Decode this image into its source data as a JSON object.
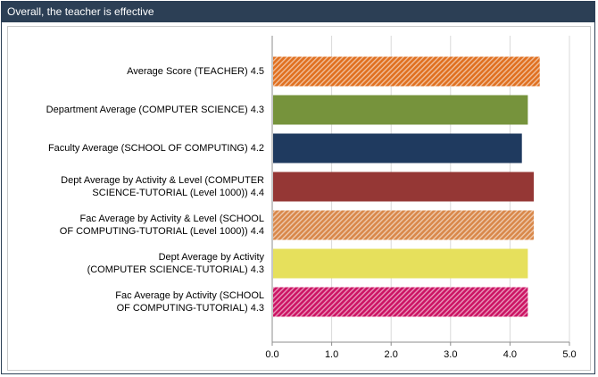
{
  "header": {
    "title": "Overall, the teacher is effective"
  },
  "chart_data": {
    "type": "bar",
    "orientation": "horizontal",
    "title": "Overall, the teacher is effective",
    "xlabel": "",
    "ylabel": "",
    "xlim": [
      0,
      5
    ],
    "xticks": [
      0,
      1,
      2,
      3,
      4,
      5
    ],
    "xtick_labels": [
      "0.0",
      "1.0",
      "2.0",
      "3.0",
      "4.0",
      "5.0"
    ],
    "grid": true,
    "categories": [
      "Average Score (TEACHER) 4.5",
      "Department Average (COMPUTER SCIENCE) 4.3",
      "Faculty Average (SCHOOL OF COMPUTING) 4.2",
      "Dept Average by Activity & Level (COMPUTER SCIENCE-TUTORIAL (Level 1000)) 4.4",
      "Fac Average by Activity & Level (SCHOOL OF COMPUTING-TUTORIAL (Level 1000)) 4.4",
      "Dept Average by Activity (COMPUTER SCIENCE-TUTORIAL) 4.3",
      "Fac Average by Activity (SCHOOL OF COMPUTING-TUTORIAL) 4.3"
    ],
    "label_lines": [
      [
        "Average Score (TEACHER) 4.5"
      ],
      [
        "Department Average (COMPUTER SCIENCE) 4.3"
      ],
      [
        "Faculty Average (SCHOOL OF COMPUTING) 4.2"
      ],
      [
        "Dept Average by Activity & Level (COMPUTER",
        "SCIENCE-TUTORIAL (Level 1000)) 4.4"
      ],
      [
        "Fac Average by Activity & Level (SCHOOL",
        "OF COMPUTING-TUTORIAL (Level 1000)) 4.4"
      ],
      [
        "Dept Average by Activity",
        "(COMPUTER SCIENCE-TUTORIAL) 4.3"
      ],
      [
        "Fac Average by Activity (SCHOOL",
        "OF COMPUTING-TUTORIAL) 4.3"
      ]
    ],
    "values": [
      4.5,
      4.3,
      4.2,
      4.4,
      4.4,
      4.3,
      4.3
    ],
    "bar_colors": [
      "#e07020",
      "#76933c",
      "#1f3a5f",
      "#953735",
      "#d9884a",
      "#e6e05c",
      "#cc1464"
    ],
    "bar_patterns": [
      "hatch",
      "solid",
      "solid",
      "solid",
      "hatch",
      "solid",
      "hatch"
    ]
  }
}
